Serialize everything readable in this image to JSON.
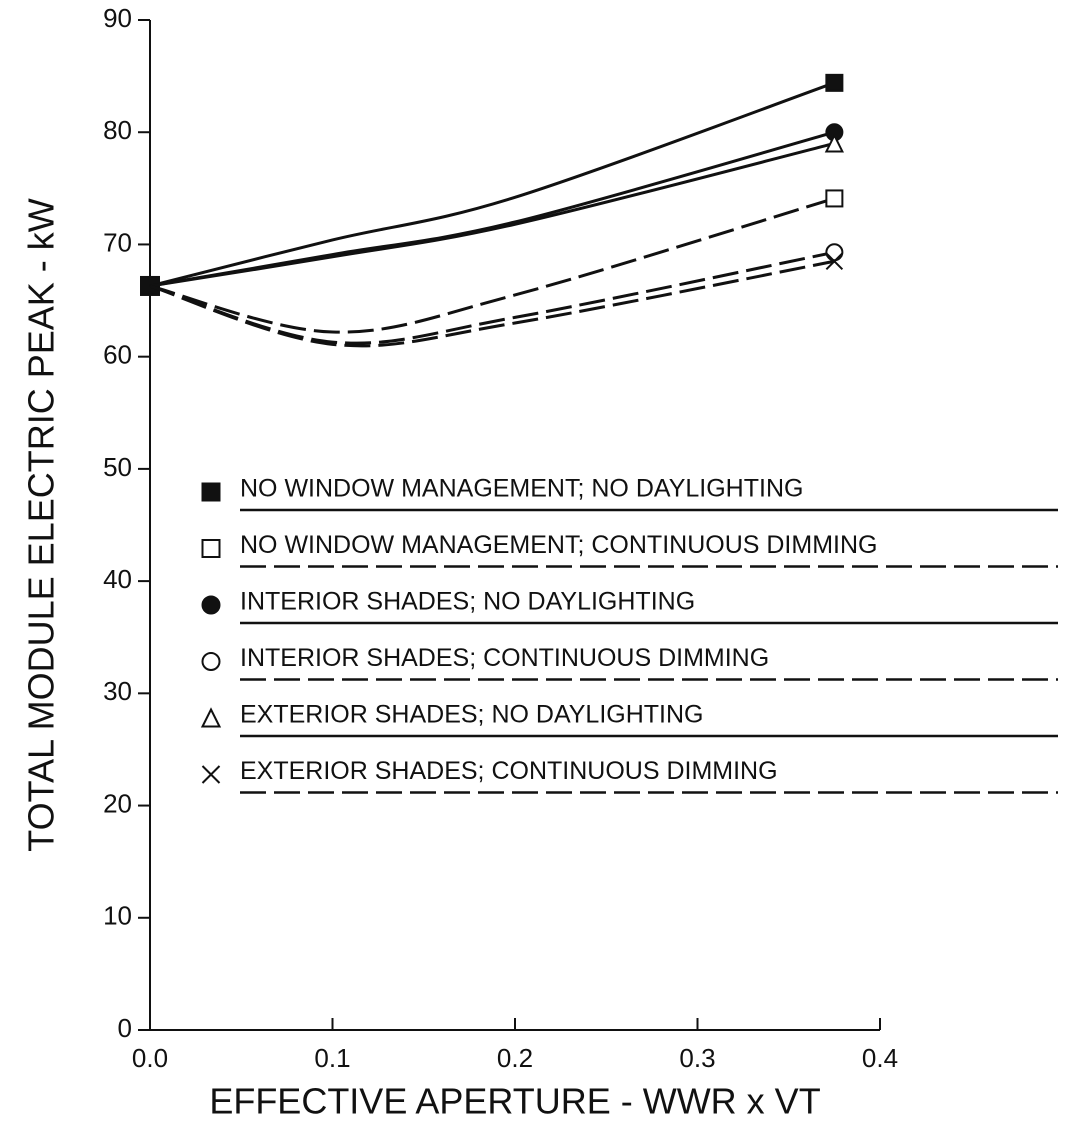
{
  "chart_data": {
    "type": "line",
    "xlabel": "EFFECTIVE APERTURE - WWR x VT",
    "ylabel": "TOTAL MODULE ELECTRIC PEAK - kW",
    "x": [
      0,
      0.1,
      0.2,
      0.375
    ],
    "xlim": [
      0,
      0.4
    ],
    "xticks": [
      {
        "value": 0,
        "label": "0.0"
      },
      0.1,
      0.2,
      0.3,
      0.4
    ],
    "ylim": [
      0,
      90
    ],
    "yticks": [
      0,
      10,
      20,
      30,
      40,
      50,
      60,
      70,
      80,
      90
    ],
    "grid": false,
    "legend": "center",
    "series": [
      {
        "name": "NO WINDOW MANAGEMENT; NO DAYLIGHTING",
        "color": "#111111",
        "marker": "square-filled",
        "dash": false,
        "values": [
          66.3,
          70.4,
          74.2,
          84.4
        ]
      },
      {
        "name": "NO WINDOW MANAGEMENT; CONTINUOUS DIMMING",
        "color": "#111111",
        "marker": "square-open",
        "dash": true,
        "values": [
          66.3,
          62.2,
          65.5,
          74.1
        ]
      },
      {
        "name": "INTERIOR SHADES; NO DAYLIGHTING",
        "color": "#111111",
        "marker": "circle-filled",
        "dash": false,
        "values": [
          66.3,
          69.1,
          72.0,
          80.0
        ]
      },
      {
        "name": "INTERIOR SHADES; CONTINUOUS DIMMING",
        "color": "#111111",
        "marker": "circle-open",
        "dash": true,
        "values": [
          66.3,
          61.3,
          63.5,
          69.3
        ]
      },
      {
        "name": "EXTERIOR SHADES; NO DAYLIGHTING",
        "color": "#111111",
        "marker": "triangle-open",
        "dash": false,
        "values": [
          66.3,
          68.9,
          71.8,
          79.0
        ]
      },
      {
        "name": "EXTERIOR SHADES; CONTINUOUS DIMMING",
        "color": "#111111",
        "marker": "x",
        "dash": true,
        "values": [
          66.3,
          61.1,
          63.0,
          68.5
        ]
      }
    ]
  }
}
